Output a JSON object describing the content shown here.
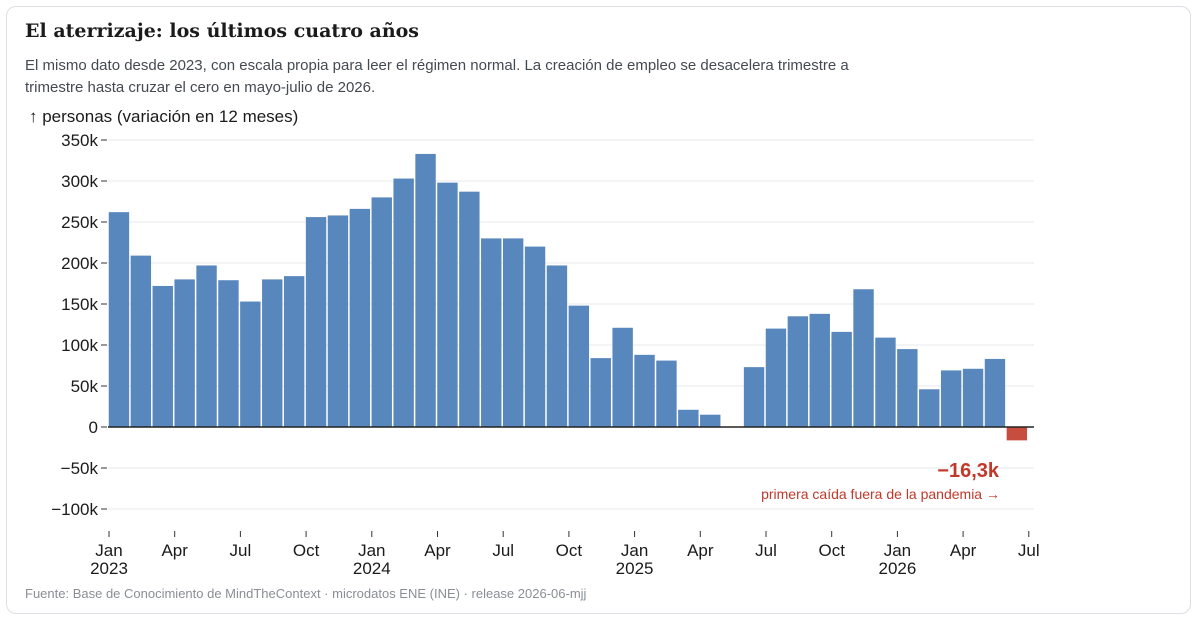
{
  "title": "El aterrizaje: los últimos cuatro años",
  "subtitle": "El mismo dato desde 2023, con escala propia para leer el régimen normal. La creación de empleo se desacelera trimestre a trimestre hasta cruzar el cero en mayo-julio de 2026.",
  "source": "Fuente: Base de Conocimiento de MindTheContext · microdatos ENE (INE) · release 2026-06-mjj",
  "colors": {
    "positive": "#5887bd",
    "negative": "#c74d3f",
    "annotation": "#c0392b",
    "grid": "#e6e8eb",
    "zero": "#222222"
  },
  "annotation": {
    "value": "−16,3k",
    "text": "primera caída fuera de la pandemia →"
  },
  "chart_data": {
    "type": "bar",
    "ylabel": "↑ personas (variación en 12 meses)",
    "ylim": [
      -120000,
      350000
    ],
    "yticks": [
      -100000,
      -50000,
      0,
      50000,
      100000,
      150000,
      200000,
      250000,
      300000,
      350000
    ],
    "ytick_labels": [
      "−100k",
      "−50k",
      "0",
      "50k",
      "100k",
      "150k",
      "200k",
      "250k",
      "300k",
      "350k"
    ],
    "xticks": [
      {
        "month": 0,
        "label": "Jan",
        "year": "2023"
      },
      {
        "month": 3,
        "label": "Apr",
        "year": ""
      },
      {
        "month": 6,
        "label": "Jul",
        "year": ""
      },
      {
        "month": 9,
        "label": "Oct",
        "year": ""
      },
      {
        "month": 12,
        "label": "Jan",
        "year": "2024"
      },
      {
        "month": 15,
        "label": "Apr",
        "year": ""
      },
      {
        "month": 18,
        "label": "Jul",
        "year": ""
      },
      {
        "month": 21,
        "label": "Oct",
        "year": ""
      },
      {
        "month": 24,
        "label": "Jan",
        "year": "2025"
      },
      {
        "month": 27,
        "label": "Apr",
        "year": ""
      },
      {
        "month": 30,
        "label": "Jul",
        "year": ""
      },
      {
        "month": 33,
        "label": "Oct",
        "year": ""
      },
      {
        "month": 36,
        "label": "Jan",
        "year": "2026"
      },
      {
        "month": 39,
        "label": "Apr",
        "year": ""
      },
      {
        "month": 42,
        "label": "Jul",
        "year": ""
      }
    ],
    "periods": [
      "2023-01",
      "2023-02",
      "2023-03",
      "2023-04",
      "2023-05",
      "2023-06",
      "2023-07",
      "2023-08",
      "2023-09",
      "2023-10",
      "2023-11",
      "2023-12",
      "2024-01",
      "2024-02",
      "2024-03",
      "2024-04",
      "2024-05",
      "2024-06",
      "2024-07",
      "2024-08",
      "2024-09",
      "2024-10",
      "2024-11",
      "2024-12",
      "2025-01",
      "2025-02",
      "2025-03",
      "2025-04",
      "2025-05",
      "2025-06",
      "2025-07",
      "2025-08",
      "2025-09",
      "2025-10",
      "2025-11",
      "2025-12",
      "2026-01",
      "2026-02",
      "2026-03",
      "2026-04",
      "2026-05",
      "2026-06"
    ],
    "values": [
      262000,
      209000,
      172000,
      180000,
      197000,
      179000,
      153000,
      180000,
      184000,
      256000,
      258000,
      266000,
      280000,
      303000,
      333000,
      298000,
      287000,
      230000,
      230000,
      220000,
      197000,
      148000,
      84000,
      121000,
      88000,
      81000,
      21000,
      15000,
      null,
      73000,
      120000,
      135000,
      138000,
      116000,
      168000,
      109000,
      95000,
      46000,
      69000,
      71000,
      83000,
      -16300
    ]
  }
}
